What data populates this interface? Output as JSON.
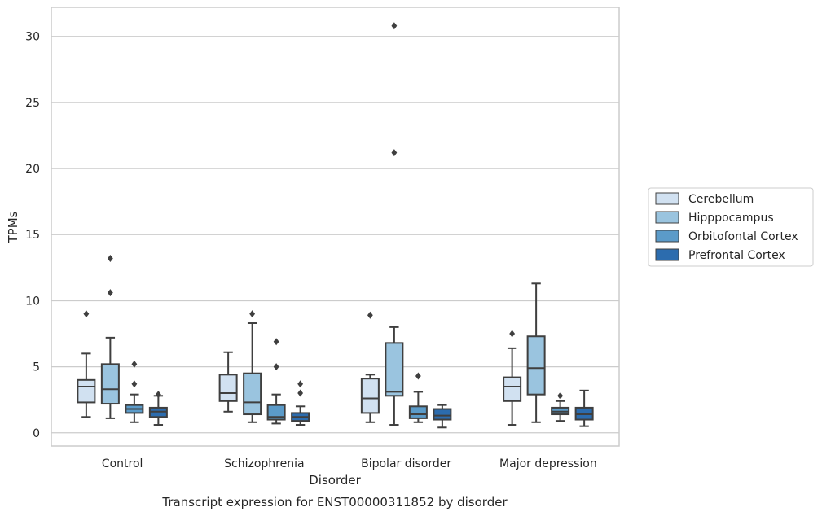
{
  "chart_data": {
    "type": "box",
    "title": "",
    "caption": "Transcript expression for ENST00000311852 by disorder",
    "xlabel": "Disorder",
    "ylabel": "TPMs",
    "ylim": [
      -1,
      32.2
    ],
    "yticks": [
      0,
      5,
      10,
      15,
      20,
      25,
      30
    ],
    "grid": "horizontal",
    "legend_position": "right",
    "categories": [
      "Control",
      "Schizophrenia",
      "Bipolar disorder",
      "Major depression"
    ],
    "series": [
      {
        "name": "Cerebellum",
        "color": "#d1e1f1",
        "boxes": [
          {
            "whislo": 1.2,
            "q1": 2.3,
            "med": 3.5,
            "q3": 4.0,
            "whishi": 6.0,
            "fliers": [
              9.0
            ]
          },
          {
            "whislo": 1.6,
            "q1": 2.4,
            "med": 3.0,
            "q3": 4.4,
            "whishi": 6.1,
            "fliers": []
          },
          {
            "whislo": 0.8,
            "q1": 1.5,
            "med": 2.6,
            "q3": 4.1,
            "whishi": 4.4,
            "fliers": [
              8.9
            ]
          },
          {
            "whislo": 0.6,
            "q1": 2.4,
            "med": 3.5,
            "q3": 4.2,
            "whishi": 6.4,
            "fliers": [
              7.5
            ]
          }
        ]
      },
      {
        "name": "Hipppocampus",
        "color": "#9ac4df",
        "boxes": [
          {
            "whislo": 1.1,
            "q1": 2.2,
            "med": 3.3,
            "q3": 5.2,
            "whishi": 7.2,
            "fliers": [
              10.6,
              13.2
            ]
          },
          {
            "whislo": 0.8,
            "q1": 1.4,
            "med": 2.3,
            "q3": 4.5,
            "whishi": 8.3,
            "fliers": [
              9.0
            ]
          },
          {
            "whislo": 0.6,
            "q1": 2.8,
            "med": 3.1,
            "q3": 6.8,
            "whishi": 8.0,
            "fliers": [
              21.2,
              30.8
            ]
          },
          {
            "whislo": 0.8,
            "q1": 2.9,
            "med": 4.9,
            "q3": 7.3,
            "whishi": 11.3,
            "fliers": []
          }
        ]
      },
      {
        "name": "Orbitofontal Cortex",
        "color": "#5b9bc9",
        "boxes": [
          {
            "whislo": 0.8,
            "q1": 1.5,
            "med": 1.8,
            "q3": 2.1,
            "whishi": 2.9,
            "fliers": [
              3.7,
              5.2
            ]
          },
          {
            "whislo": 0.7,
            "q1": 1.0,
            "med": 1.2,
            "q3": 2.1,
            "whishi": 2.9,
            "fliers": [
              5.0,
              6.9
            ]
          },
          {
            "whislo": 0.8,
            "q1": 1.1,
            "med": 1.4,
            "q3": 2.0,
            "whishi": 3.1,
            "fliers": [
              4.3
            ]
          },
          {
            "whislo": 0.9,
            "q1": 1.4,
            "med": 1.6,
            "q3": 1.9,
            "whishi": 2.4,
            "fliers": [
              2.8
            ]
          }
        ]
      },
      {
        "name": "Prefrontal Cortex",
        "color": "#2c6cae",
        "boxes": [
          {
            "whislo": 0.6,
            "q1": 1.2,
            "med": 1.6,
            "q3": 1.9,
            "whishi": 2.8,
            "fliers": [
              2.9
            ]
          },
          {
            "whislo": 0.6,
            "q1": 0.9,
            "med": 1.2,
            "q3": 1.5,
            "whishi": 2.0,
            "fliers": [
              3.0,
              3.7
            ]
          },
          {
            "whislo": 0.4,
            "q1": 1.0,
            "med": 1.3,
            "q3": 1.8,
            "whishi": 2.1,
            "fliers": []
          },
          {
            "whislo": 0.5,
            "q1": 1.0,
            "med": 1.4,
            "q3": 1.9,
            "whishi": 3.2,
            "fliers": []
          }
        ]
      }
    ]
  }
}
